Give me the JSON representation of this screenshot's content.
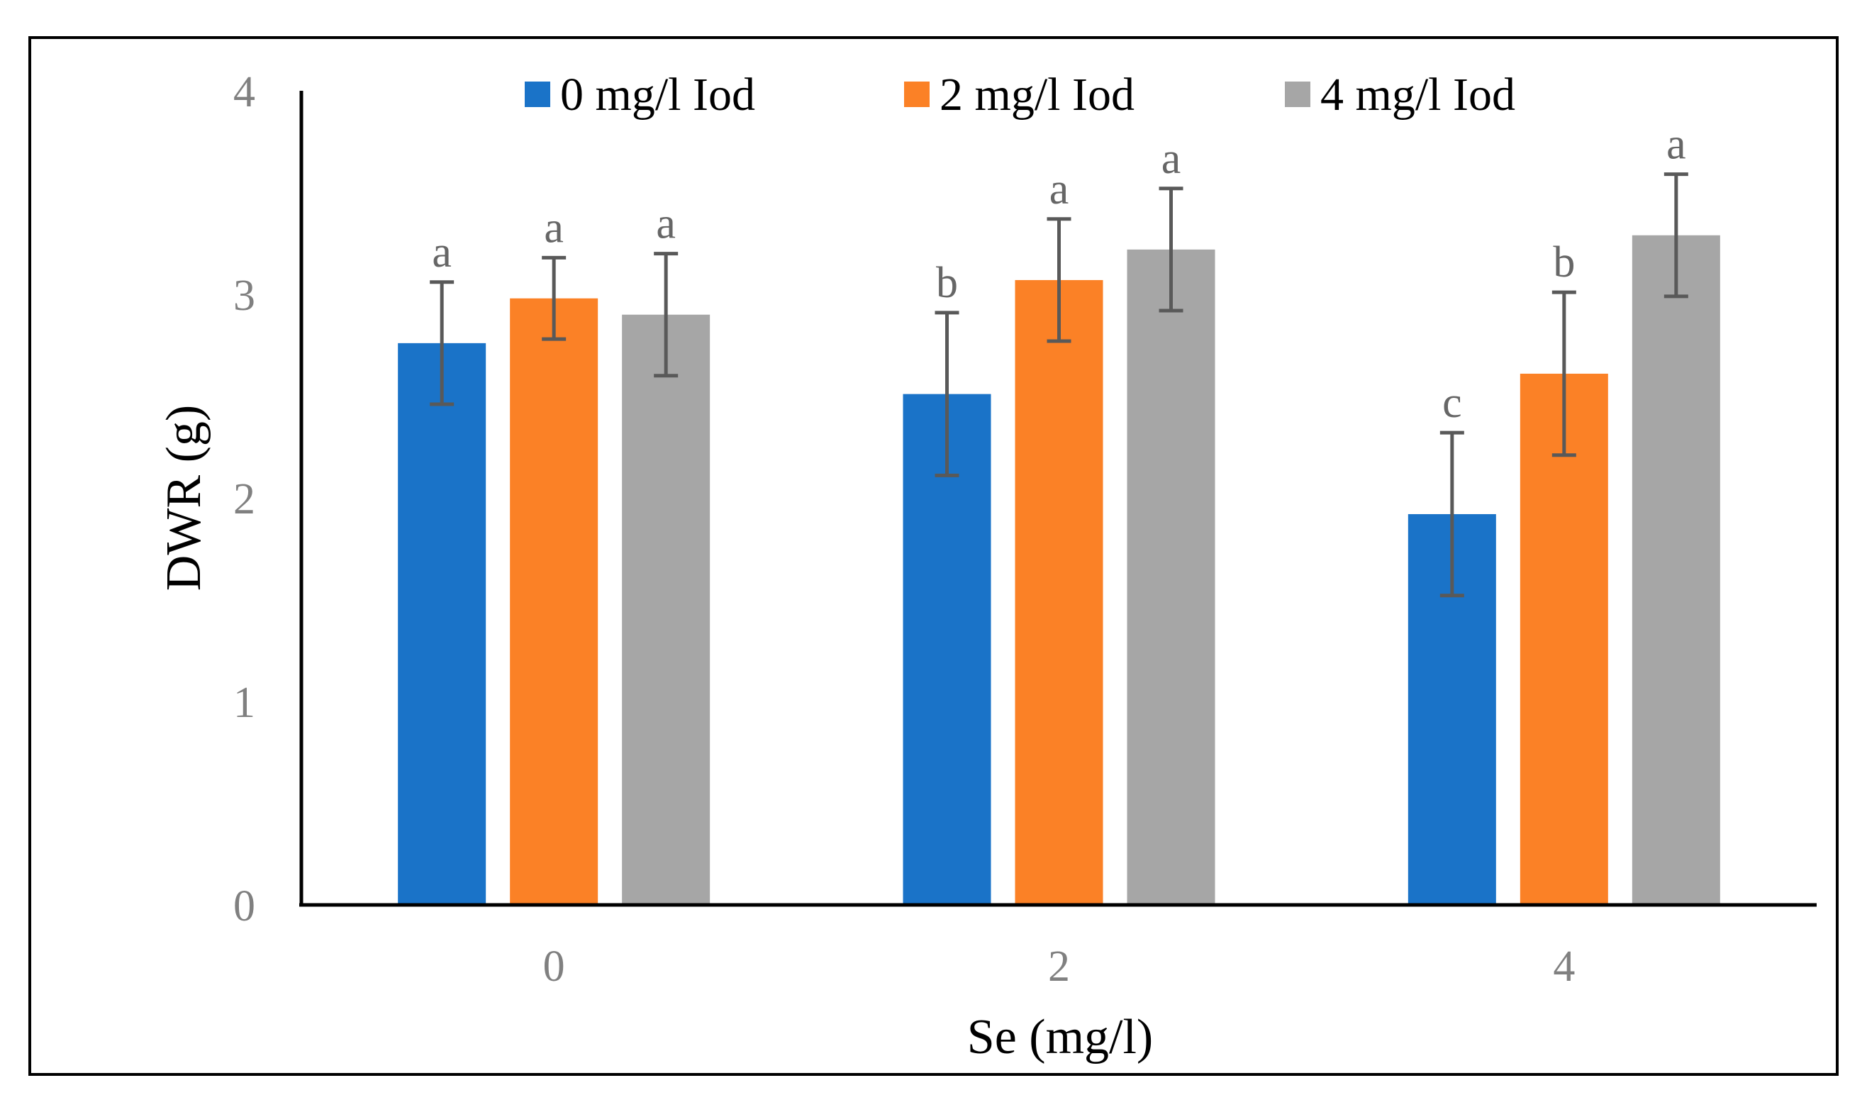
{
  "chart_data": {
    "type": "bar",
    "title": "",
    "xlabel": "Se (mg/l)",
    "ylabel": "DWR (g)",
    "ylim": [
      0,
      4
    ],
    "yticks": [
      "0",
      "1",
      "2",
      "3",
      "4"
    ],
    "categories": [
      "0",
      "2",
      "4"
    ],
    "grid": false,
    "legend_position": "top",
    "series": [
      {
        "name": "0 mg/l Iod",
        "color": "#1A73C8",
        "values": [
          2.76,
          2.51,
          1.92
        ],
        "errors": [
          0.3,
          0.4,
          0.4
        ],
        "labels": [
          "a",
          "b",
          "c"
        ]
      },
      {
        "name": "2 mg/l Iod",
        "color": "#FB8126",
        "values": [
          2.98,
          3.07,
          2.61
        ],
        "errors": [
          0.2,
          0.3,
          0.4
        ],
        "labels": [
          "a",
          "a",
          "b"
        ]
      },
      {
        "name": "4 mg/l Iod",
        "color": "#A6A6A6",
        "values": [
          2.9,
          3.22,
          3.29
        ],
        "errors": [
          0.3,
          0.3,
          0.3
        ],
        "labels": [
          "a",
          "a",
          "a"
        ]
      }
    ],
    "error_bar_color": "#595959"
  }
}
